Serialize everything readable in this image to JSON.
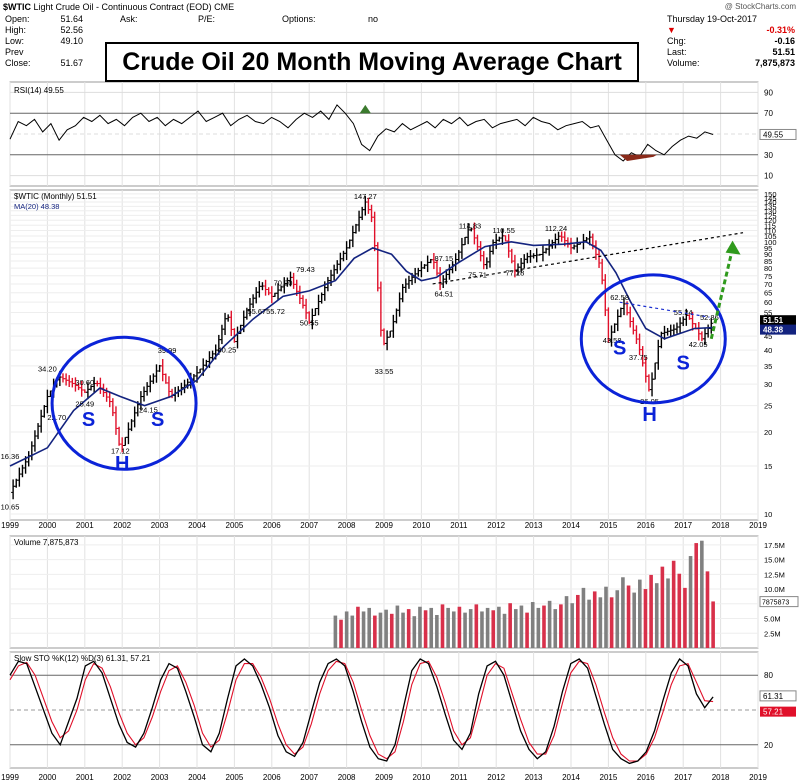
{
  "header": {
    "symbol": "$WTIC",
    "name": "Light Crude Oil - Continuous Contract (EOD)",
    "exchange": "CME",
    "fields": [
      {
        "label": "Open:",
        "value": "51.64"
      },
      {
        "label": "High:",
        "value": "52.56"
      },
      {
        "label": "Low:",
        "value": "49.10"
      },
      {
        "label": "Prev Close:",
        "value": "51.67"
      }
    ],
    "ask_label": "Ask:",
    "pe_label": "P/E:",
    "options_label": "Options:",
    "options_value": "no"
  },
  "quote": {
    "date": "Thursday 19-Oct-2017",
    "pct_change": "-0.31%",
    "chg_label": "Chg:",
    "chg": "-0.16",
    "last_label": "Last:",
    "last": "51.51",
    "volume_label": "Volume:",
    "volume": "7,875,873"
  },
  "credit": "@ StockCharts.com",
  "banner": "Crude Oil 20 Month Moving Average Chart",
  "colors": {
    "up": "#000000",
    "down": "#e0102a",
    "ma": "#13237f",
    "circle": "#0b23d8",
    "pattern_text": "#0b23d8",
    "green_arrow": "#2f9a1c",
    "rsi_over": "#3b7a2e",
    "rsi_under": "#8a2a1a",
    "vol_up": "#808080",
    "vol_down": "#d8304a"
  },
  "chart_data": {
    "type": "line",
    "title": "$WTIC (Monthly) 51.51",
    "ma_label": "MA(20) 48.38",
    "x_ticks": [
      "1999",
      "2000",
      "2001",
      "2002",
      "2003",
      "2004",
      "2005",
      "2006",
      "2007",
      "2008",
      "2009",
      "2010",
      "2011",
      "2012",
      "2013",
      "2014",
      "2015",
      "2016",
      "2017",
      "2018",
      "2019"
    ],
    "y_scale": "log",
    "y_ticks": [
      10,
      15,
      20,
      25,
      30,
      35,
      40,
      45,
      50,
      55,
      60,
      65,
      70,
      75,
      80,
      85,
      90,
      95,
      100,
      105,
      110,
      115,
      120,
      125,
      130,
      135,
      140,
      145,
      150
    ],
    "ylim": [
      9.5,
      155
    ],
    "series": [
      {
        "name": "$WTIC",
        "x": [
          1999.0,
          1999.5,
          2000.0,
          2000.3,
          2000.7,
          2001.0,
          2001.3,
          2001.7,
          2001.95,
          2002.5,
          2003.0,
          2003.3,
          2003.7,
          2004.0,
          2004.5,
          2004.8,
          2005.0,
          2005.3,
          2005.7,
          2006.0,
          2006.5,
          2006.9,
          2007.0,
          2007.5,
          2008.0,
          2008.5,
          2008.7,
          2008.95,
          2009.2,
          2009.5,
          2009.9,
          2010.3,
          2010.5,
          2010.9,
          2011.3,
          2011.7,
          2011.9,
          2012.2,
          2012.5,
          2012.8,
          2013.2,
          2013.7,
          2014.0,
          2014.5,
          2014.8,
          2015.0,
          2015.4,
          2015.8,
          2016.1,
          2016.4,
          2016.8,
          2017.1,
          2017.5,
          2017.8
        ],
        "values": [
          12.0,
          16.36,
          27.0,
          32.0,
          30.0,
          28.0,
          30.6,
          25.49,
          17.12,
          27.0,
          35.0,
          27.0,
          30.0,
          33.0,
          40.0,
          55.0,
          43.0,
          55.0,
          70.0,
          63.0,
          74.0,
          55.72,
          50.55,
          72.0,
          95.0,
          140.0,
          120.0,
          41.0,
          48.0,
          68.0,
          78.0,
          87.15,
          70.0,
          85.0,
          114.83,
          80.0,
          99.0,
          106.0,
          78.0,
          88.0,
          90.0,
          106.0,
          95.0,
          104.0,
          80.0,
          43.58,
          60.0,
          42.0,
          28.0,
          46.0,
          48.0,
          54.0,
          44.0,
          51.51
        ]
      },
      {
        "name": "MA(20)",
        "x": [
          1999.0,
          2000.0,
          2000.7,
          2001.4,
          2001.95,
          2002.6,
          2003.3,
          2004.0,
          2004.7,
          2005.5,
          2006.3,
          2007.0,
          2007.7,
          2008.2,
          2008.7,
          2009.2,
          2009.6,
          2010.0,
          2010.4,
          2011.0,
          2011.7,
          2012.4,
          2013.0,
          2013.8,
          2014.4,
          2014.8,
          2015.2,
          2015.6,
          2016.0,
          2016.5,
          2016.9,
          2017.3,
          2017.8
        ],
        "values": [
          15.0,
          17.5,
          24.0,
          29.0,
          27.0,
          25.0,
          27.0,
          31.0,
          41.0,
          52.0,
          63.0,
          66.0,
          72.0,
          87.0,
          95.0,
          90.0,
          78.0,
          72.0,
          74.0,
          84.0,
          96.0,
          100.0,
          97.0,
          98.0,
          100.0,
          93.0,
          77.0,
          60.0,
          48.0,
          44.0,
          46.0,
          48.0,
          48.38
        ]
      }
    ],
    "price_labels": [
      {
        "x": 1999.0,
        "y": 16.36,
        "text": "16.36"
      },
      {
        "x": 1999.0,
        "y": 10.65,
        "text": "10.65"
      },
      {
        "x": 2000.0,
        "y": 34.2,
        "text": "34.20"
      },
      {
        "x": 2000.25,
        "y": 22.7,
        "text": "22.70"
      },
      {
        "x": 2001.0,
        "y": 30.6,
        "text": "30.60"
      },
      {
        "x": 2001.0,
        "y": 25.49,
        "text": "25.49"
      },
      {
        "x": 2001.95,
        "y": 17.12,
        "text": "17.12"
      },
      {
        "x": 2002.7,
        "y": 24.15,
        "text": "24.15"
      },
      {
        "x": 2003.2,
        "y": 39.99,
        "text": "39.99"
      },
      {
        "x": 2004.8,
        "y": 40.25,
        "text": "40.25"
      },
      {
        "x": 2005.6,
        "y": 55.67,
        "text": "55.67"
      },
      {
        "x": 2006.1,
        "y": 55.72,
        "text": "55.72"
      },
      {
        "x": 2006.3,
        "y": 70.9,
        "text": "70.90"
      },
      {
        "x": 2006.9,
        "y": 79.43,
        "text": "79.43"
      },
      {
        "x": 2007.0,
        "y": 50.55,
        "text": "50.55"
      },
      {
        "x": 2008.5,
        "y": 147.27,
        "text": "147.27"
      },
      {
        "x": 2009.0,
        "y": 33.55,
        "text": "33.55"
      },
      {
        "x": 2010.6,
        "y": 87.15,
        "text": "87.15"
      },
      {
        "x": 2010.6,
        "y": 64.51,
        "text": "64.51"
      },
      {
        "x": 2011.3,
        "y": 114.83,
        "text": "114.83"
      },
      {
        "x": 2011.5,
        "y": 75.71,
        "text": "75.71"
      },
      {
        "x": 2012.2,
        "y": 110.55,
        "text": "110.55"
      },
      {
        "x": 2012.5,
        "y": 77.28,
        "text": "77.28"
      },
      {
        "x": 2013.6,
        "y": 112.24,
        "text": "112.24"
      },
      {
        "x": 2015.3,
        "y": 62.58,
        "text": "62.58"
      },
      {
        "x": 2015.1,
        "y": 43.58,
        "text": "43.58"
      },
      {
        "x": 2015.8,
        "y": 37.75,
        "text": "37.75"
      },
      {
        "x": 2016.1,
        "y": 26.05,
        "text": "26.05"
      },
      {
        "x": 2017.0,
        "y": 55.24,
        "text": "55.24"
      },
      {
        "x": 2017.4,
        "y": 42.05,
        "text": "42.05"
      },
      {
        "x": 2017.7,
        "y": 52.86,
        "text": "52.86"
      }
    ],
    "right_labels": [
      {
        "value": "51.51"
      },
      {
        "value": "48.38"
      }
    ],
    "annotations": {
      "pattern_letters": [
        {
          "text": "S",
          "x": 2001.1,
          "y": 21.0
        },
        {
          "text": "S",
          "x": 2002.95,
          "y": 21.0
        },
        {
          "text": "H",
          "x": 2002.0,
          "y": 14.5
        },
        {
          "text": "S",
          "x": 2015.3,
          "y": 38.5
        },
        {
          "text": "S",
          "x": 2017.0,
          "y": 34.0
        },
        {
          "text": "H",
          "x": 2016.1,
          "y": 22.0
        }
      ]
    },
    "rsi": {
      "label": "RSI(14) 49.55",
      "value_label": "49.55",
      "y_ticks": [
        10,
        30,
        50,
        70,
        90
      ],
      "ylim": [
        0,
        100
      ],
      "values": [
        45,
        62,
        58,
        64,
        52,
        60,
        44,
        54,
        58,
        66,
        62,
        68,
        60,
        64,
        58,
        66,
        70,
        62,
        66,
        58,
        64,
        60,
        66,
        72,
        62,
        66,
        70,
        58,
        64,
        68,
        62,
        60,
        66,
        62,
        56,
        64,
        70,
        66,
        72,
        64,
        78,
        70,
        60,
        40,
        34,
        48,
        55,
        52,
        60,
        54,
        58,
        62,
        56,
        64,
        60,
        66,
        58,
        62,
        64,
        56,
        60,
        62,
        64,
        58,
        66,
        62,
        60,
        54,
        58,
        60,
        62,
        56,
        58,
        44,
        30,
        24,
        32,
        28,
        40,
        34,
        30,
        38,
        44,
        48,
        46,
        52,
        49.55
      ]
    },
    "volume": {
      "label": "Volume 7,875,873",
      "value_label": "7875873",
      "y_ticks": [
        "2.5M",
        "5.0M",
        "7.5M",
        "10.0M",
        "12.5M",
        "15.0M",
        "17.5M"
      ],
      "tick_values": [
        2.5,
        5,
        7.5,
        10,
        12.5,
        15,
        17.5
      ],
      "ylim": [
        0,
        19
      ],
      "start": 2007.7,
      "values": [
        5.5,
        4.8,
        6.2,
        5.5,
        7.0,
        6.2,
        6.8,
        5.5,
        6.0,
        6.5,
        5.8,
        7.2,
        6.0,
        6.6,
        5.4,
        7.0,
        6.4,
        6.8,
        5.6,
        7.4,
        6.8,
        6.2,
        7.0,
        6.0,
        6.6,
        7.4,
        6.2,
        6.8,
        6.4,
        7.0,
        5.8,
        7.6,
        6.6,
        7.2,
        6.0,
        7.8,
        6.8,
        7.2,
        8.0,
        6.6,
        7.4,
        8.8,
        7.6,
        9.0,
        10.2,
        8.2,
        9.6,
        8.6,
        10.4,
        8.6,
        9.8,
        12.0,
        10.6,
        9.4,
        11.6,
        10.0,
        12.4,
        11.0,
        13.8,
        11.8,
        14.8,
        12.6,
        10.2,
        15.6,
        17.8,
        18.2,
        13.0,
        7.9
      ]
    },
    "stoch": {
      "label": "Slow STO %K(12) %D(3) 61.31, 57.21",
      "values_label": [
        "61.31",
        "57.21"
      ],
      "y_ticks": [
        20,
        50,
        80
      ],
      "ylim": [
        0,
        100
      ],
      "k": [
        80,
        92,
        90,
        70,
        50,
        30,
        20,
        40,
        60,
        88,
        92,
        82,
        60,
        38,
        22,
        18,
        30,
        52,
        76,
        90,
        86,
        66,
        44,
        20,
        14,
        30,
        60,
        88,
        94,
        88,
        72,
        52,
        28,
        14,
        10,
        22,
        48,
        74,
        90,
        94,
        88,
        66,
        40,
        18,
        8,
        6,
        20,
        52,
        84,
        94,
        90,
        70,
        46,
        24,
        16,
        30,
        64,
        88,
        92,
        80,
        56,
        32,
        16,
        8,
        14,
        36,
        66,
        90,
        94,
        86,
        62,
        38,
        16,
        8,
        4,
        6,
        14,
        32,
        58,
        82,
        94,
        88,
        64,
        52,
        61.31
      ],
      "d": [
        76,
        88,
        91,
        80,
        60,
        40,
        26,
        32,
        50,
        76,
        90,
        86,
        70,
        48,
        30,
        20,
        26,
        44,
        66,
        84,
        88,
        74,
        54,
        30,
        18,
        24,
        48,
        76,
        90,
        90,
        78,
        60,
        38,
        20,
        12,
        18,
        38,
        64,
        84,
        92,
        90,
        74,
        50,
        28,
        12,
        8,
        14,
        40,
        72,
        90,
        92,
        78,
        56,
        32,
        20,
        26,
        52,
        80,
        90,
        86,
        64,
        42,
        22,
        12,
        12,
        28,
        56,
        82,
        92,
        90,
        72,
        48,
        26,
        12,
        6,
        6,
        12,
        26,
        48,
        72,
        88,
        90,
        74,
        58,
        57.21
      ]
    }
  }
}
